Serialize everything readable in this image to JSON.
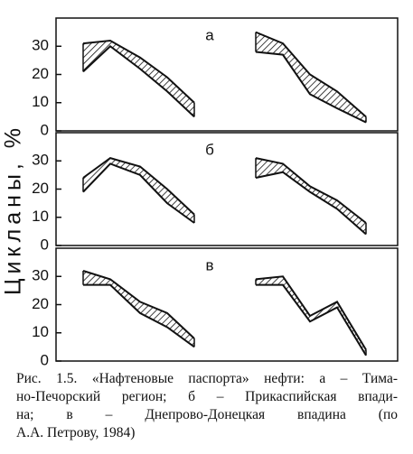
{
  "chart_data": [
    {
      "type": "band",
      "label": "а",
      "ylim": [
        0,
        40
      ],
      "yticks": [
        0,
        10,
        20,
        30
      ],
      "series": [
        {
          "color": "#111",
          "upper": [
            31,
            32,
            26,
            19,
            10
          ],
          "lower": [
            21,
            30,
            22,
            14,
            5
          ]
        },
        {
          "color": "#111",
          "upper": [
            35,
            31,
            20,
            14,
            5
          ],
          "lower": [
            28,
            27,
            13,
            8,
            3
          ]
        }
      ]
    },
    {
      "type": "band",
      "label": "б",
      "ylim": [
        0,
        40
      ],
      "yticks": [
        0,
        10,
        20,
        30
      ],
      "series": [
        {
          "color": "#111",
          "upper": [
            24,
            31,
            28,
            20,
            11
          ],
          "lower": [
            19,
            29,
            25,
            15,
            8
          ]
        },
        {
          "color": "#111",
          "upper": [
            31,
            29,
            21,
            16,
            8
          ],
          "lower": [
            24,
            26,
            19,
            13,
            4
          ]
        }
      ]
    },
    {
      "type": "band",
      "label": "в",
      "ylim": [
        0,
        40
      ],
      "yticks": [
        0,
        10,
        20,
        30
      ],
      "series": [
        {
          "color": "#111",
          "upper": [
            32,
            29,
            21,
            17,
            8
          ],
          "lower": [
            27,
            27,
            17,
            12,
            5
          ]
        },
        {
          "color": "#111",
          "upper": [
            29,
            30,
            16,
            21,
            4
          ],
          "lower": [
            27,
            27,
            14,
            19,
            2
          ]
        }
      ]
    }
  ],
  "y_label": "Цикланы, %",
  "caption": [
    "Рис. 1.5. «Нафтеновые паспорта» нефти: а – Тима-",
    "но-Печорский регион; б – Прикаспийская впади-",
    "на; в – Днепрово-Донецкая впадина (по",
    "А.А. Петрову, 1984)"
  ]
}
